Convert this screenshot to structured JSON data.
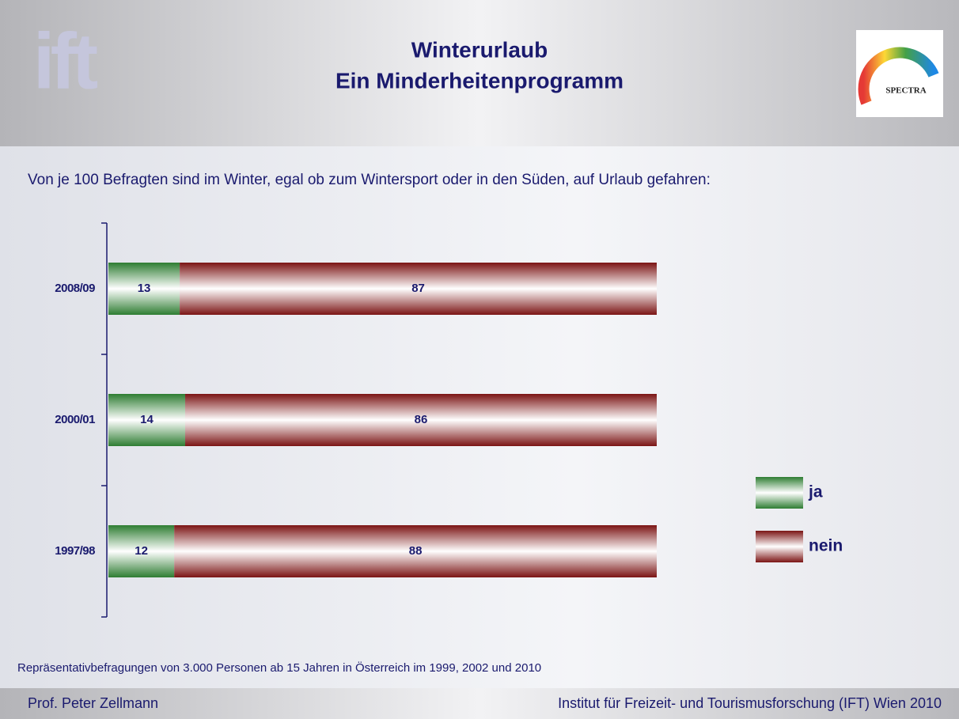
{
  "header": {
    "title_lines": [
      "Winterurlaub",
      "Ein Minderheitenprogramm"
    ],
    "logo_text": "ift",
    "logo2_text": "SPECTRA"
  },
  "chart_data": {
    "type": "bar",
    "orientation": "horizontal",
    "stacked": true,
    "subtitle": "Von je 100 Befragten sind im Winter, egal ob zum Wintersport oder in den Süden, auf Urlaub gefahren:",
    "categories": [
      "2008/09",
      "2000/01",
      "1997/98"
    ],
    "series": [
      {
        "name": "ja",
        "color": "#2e7d32",
        "values": [
          13,
          14,
          12
        ]
      },
      {
        "name": "nein",
        "color": "#7b1414",
        "values": [
          87,
          86,
          88
        ]
      }
    ],
    "legend": "right"
  },
  "note": "Repräsentativbefragungen von 3.000 Personen ab 15 Jahren in Österreich im 1999, 2002 und 2010",
  "footer": {
    "left": "Prof. Peter Zellmann",
    "right": "Institut für Freizeit- und Tourismusforschung (IFT) Wien 2010"
  }
}
